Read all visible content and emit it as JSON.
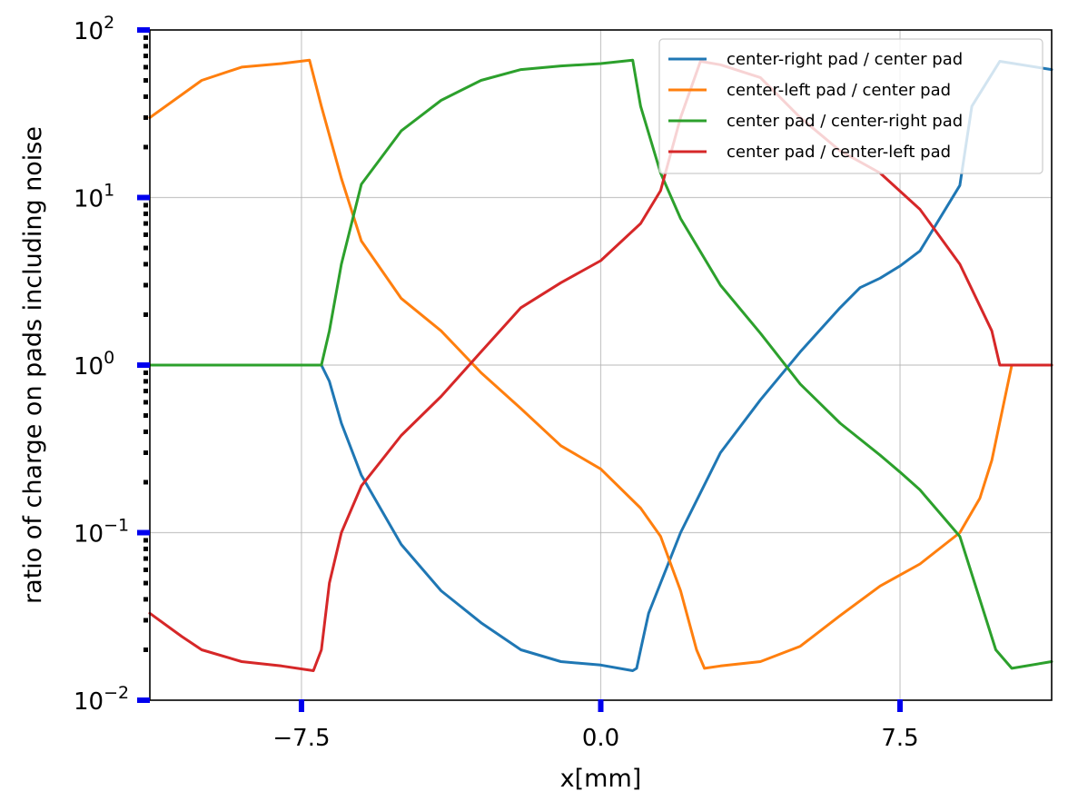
{
  "chart_data": {
    "type": "line",
    "xlabel": "x[mm]",
    "ylabel": "ratio of charge on pads including noise",
    "xlim": [
      -11.3,
      11.3
    ],
    "ylim": [
      0.01,
      100
    ],
    "yscale": "log",
    "grid": true,
    "legend_position": "top-right",
    "xticks": [
      -7.5,
      0.0,
      7.5
    ],
    "xtick_labels": [
      "−7.5",
      "0.0",
      "7.5"
    ],
    "yticks": [
      0.01,
      0.1,
      1,
      10,
      100
    ],
    "ytick_labels": [
      {
        "base": "10",
        "exp": "−2"
      },
      {
        "base": "10",
        "exp": "−1"
      },
      {
        "base": "10",
        "exp": "0"
      },
      {
        "base": "10",
        "exp": "1"
      },
      {
        "base": "10",
        "exp": "2"
      }
    ],
    "series": [
      {
        "name": "center-right pad / center pad",
        "color": "#1f77b4",
        "x": [
          -11.3,
          -7.0,
          -6.8,
          -6.5,
          -6.0,
          -5.0,
          -4.0,
          -3.0,
          -2.0,
          -1.0,
          0.0,
          0.8,
          0.9,
          1.0,
          1.2,
          1.5,
          2.0,
          3.0,
          4.0,
          5.0,
          6.0,
          6.5,
          7.0,
          7.5,
          8.0,
          9.0,
          9.3,
          10.0,
          11.3
        ],
        "y": [
          1.0,
          1.0,
          0.8,
          0.45,
          0.22,
          0.085,
          0.045,
          0.029,
          0.02,
          0.017,
          0.0162,
          0.015,
          0.0155,
          0.02,
          0.033,
          0.05,
          0.1,
          0.3,
          0.62,
          1.2,
          2.2,
          2.9,
          3.3,
          3.9,
          4.8,
          11.8,
          35,
          65,
          58
        ]
      },
      {
        "name": "center-left pad / center pad",
        "color": "#ff7f0e",
        "x": [
          -11.3,
          -10.0,
          -9.0,
          -8.0,
          -7.3,
          -7.0,
          -6.5,
          -6.0,
          -5.0,
          -4.0,
          -3.0,
          -2.0,
          -1.0,
          0.0,
          1.0,
          1.5,
          2.0,
          2.4,
          2.6,
          3.0,
          4.0,
          5.0,
          6.0,
          7.0,
          8.0,
          9.0,
          9.5,
          9.8,
          10.3,
          11.3
        ],
        "y": [
          30,
          50,
          60,
          63,
          66,
          35,
          13,
          5.5,
          2.5,
          1.6,
          0.9,
          0.55,
          0.33,
          0.24,
          0.14,
          0.095,
          0.045,
          0.02,
          0.0155,
          0.016,
          0.017,
          0.021,
          0.032,
          0.048,
          0.065,
          0.1,
          0.16,
          0.27,
          1.0,
          1.0
        ]
      },
      {
        "name": "center pad / center-right pad",
        "color": "#2ca02c",
        "x": [
          -11.3,
          -7.0,
          -6.8,
          -6.5,
          -6.0,
          -5.0,
          -4.0,
          -3.0,
          -2.0,
          -1.0,
          0.0,
          0.8,
          1.0,
          1.5,
          2.0,
          3.0,
          4.0,
          5.0,
          6.0,
          7.0,
          7.5,
          8.0,
          9.0,
          9.5,
          9.9,
          10.3,
          11.3
        ],
        "y": [
          1.0,
          1.0,
          1.6,
          4.0,
          12,
          25,
          38,
          50,
          58,
          61,
          63,
          66,
          35,
          14,
          7.5,
          3.0,
          1.55,
          0.77,
          0.45,
          0.29,
          0.23,
          0.18,
          0.095,
          0.04,
          0.02,
          0.0155,
          0.017
        ]
      },
      {
        "name": "center pad / center-left pad",
        "color": "#d62728",
        "x": [
          -11.3,
          -10.5,
          -10.0,
          -9.0,
          -8.0,
          -7.2,
          -7.0,
          -6.8,
          -6.5,
          -6.0,
          -5.0,
          -4.0,
          -3.0,
          -2.0,
          -1.0,
          0.0,
          1.0,
          1.5,
          2.0,
          2.5,
          3.0,
          4.0,
          5.0,
          6.0,
          7.0,
          8.0,
          9.0,
          9.8,
          10.0,
          10.3,
          11.3
        ],
        "y": [
          0.033,
          0.024,
          0.02,
          0.017,
          0.016,
          0.015,
          0.02,
          0.05,
          0.1,
          0.19,
          0.38,
          0.65,
          1.2,
          2.2,
          3.1,
          4.2,
          7.0,
          11,
          30,
          65,
          62,
          52,
          30,
          19,
          14,
          8.5,
          4.0,
          1.6,
          1.0,
          1.0,
          1.0
        ]
      }
    ]
  }
}
